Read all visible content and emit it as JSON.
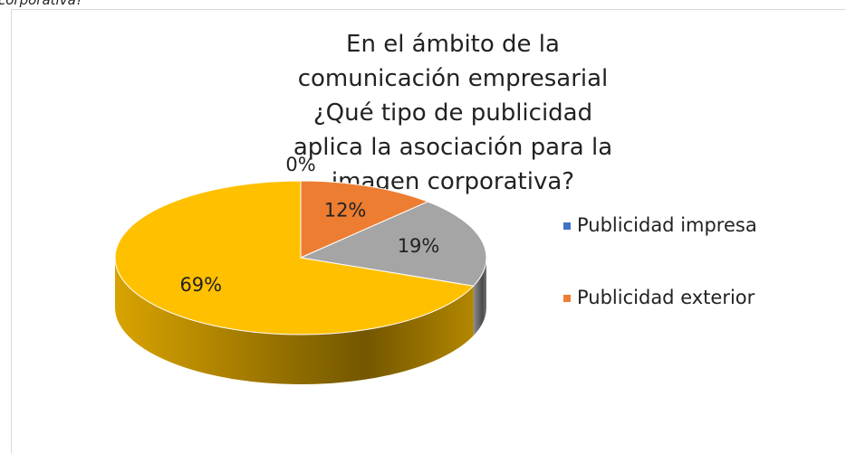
{
  "caption": "corporativa?",
  "chart_data": {
    "type": "pie",
    "title": "En el ámbito de la comunicación empresarial ¿Qué tipo de publicidad aplica la asociación para la imagen corporativa?",
    "categories": [
      "Publicidad impresa",
      "Publicidad exterior",
      null,
      null
    ],
    "values": [
      0,
      12,
      19,
      69
    ],
    "value_labels": [
      "0%",
      "12%",
      "19%",
      "69%"
    ],
    "colors": [
      "#4472c4",
      "#ed7d31",
      "#a5a5a5",
      "#ffc000"
    ],
    "legend": "right"
  }
}
